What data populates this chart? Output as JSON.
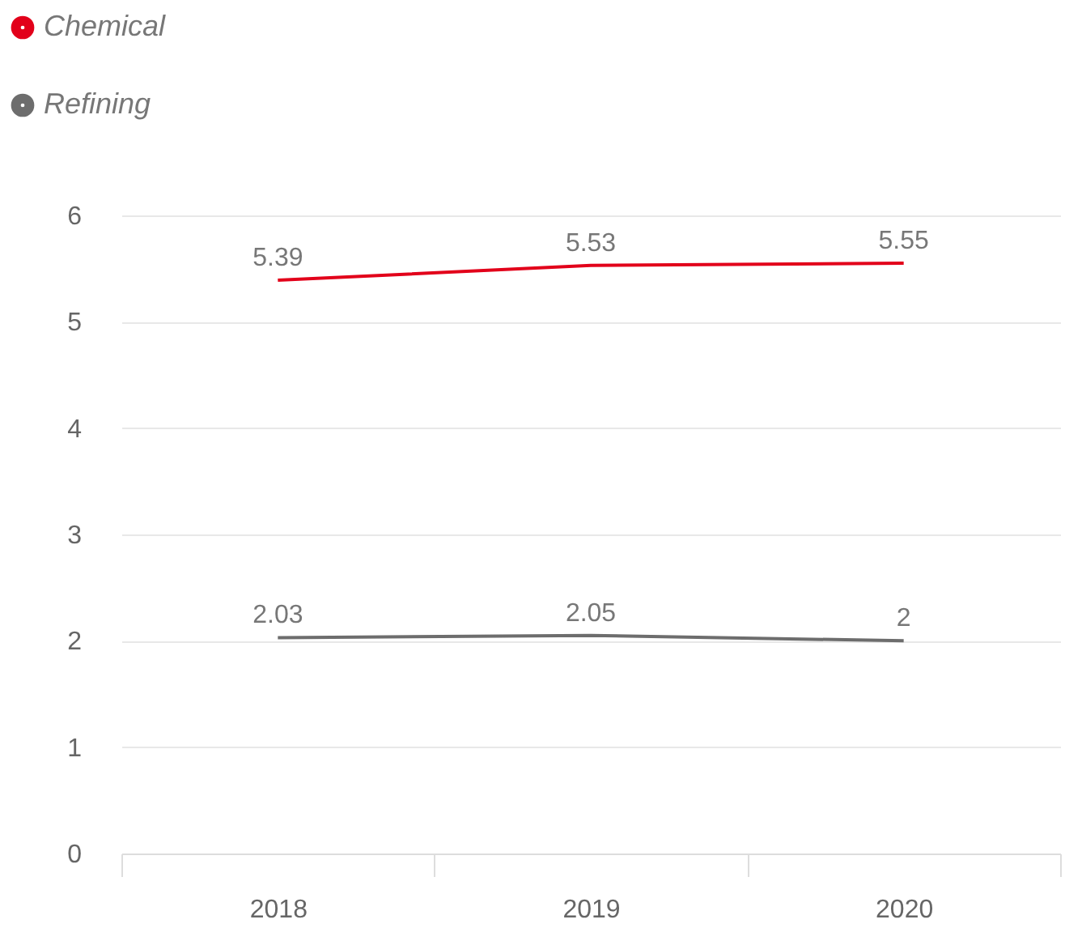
{
  "chart_data": {
    "type": "line",
    "categories": [
      "2018",
      "2019",
      "2020"
    ],
    "series": [
      {
        "name": "Chemical",
        "color": "#e2001a",
        "values": [
          5.39,
          5.53,
          5.55
        ]
      },
      {
        "name": "Refining",
        "color": "#6d6d6d",
        "values": [
          2.03,
          2.05,
          2
        ]
      }
    ],
    "ylim": [
      0,
      6
    ],
    "yticks": [
      0,
      1,
      2,
      3,
      4,
      5,
      6
    ],
    "grid": "y",
    "legend": "top left",
    "data_labels": true
  }
}
